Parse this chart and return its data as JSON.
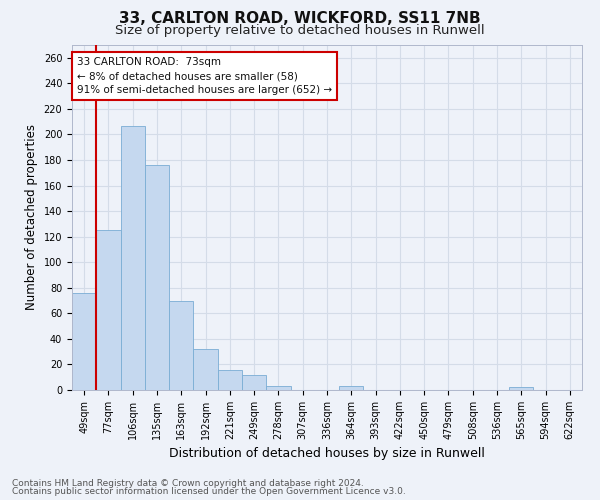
{
  "title1": "33, CARLTON ROAD, WICKFORD, SS11 7NB",
  "title2": "Size of property relative to detached houses in Runwell",
  "xlabel": "Distribution of detached houses by size in Runwell",
  "ylabel": "Number of detached properties",
  "categories": [
    "49sqm",
    "77sqm",
    "106sqm",
    "135sqm",
    "163sqm",
    "192sqm",
    "221sqm",
    "249sqm",
    "278sqm",
    "307sqm",
    "336sqm",
    "364sqm",
    "393sqm",
    "422sqm",
    "450sqm",
    "479sqm",
    "508sqm",
    "536sqm",
    "565sqm",
    "594sqm",
    "622sqm"
  ],
  "values": [
    76,
    125,
    207,
    176,
    70,
    32,
    16,
    12,
    3,
    0,
    0,
    3,
    0,
    0,
    0,
    0,
    0,
    0,
    2,
    0,
    0
  ],
  "bar_color": "#c5d8ef",
  "bar_edge_color": "#7aadd4",
  "grid_color": "#d4dce8",
  "background_color": "#eef2f9",
  "vline_color": "#cc0000",
  "annotation_title": "33 CARLTON ROAD:  73sqm",
  "annotation_line1": "← 8% of detached houses are smaller (58)",
  "annotation_line2": "91% of semi-detached houses are larger (652) →",
  "annotation_box_color": "#ffffff",
  "annotation_border_color": "#cc0000",
  "ylim": [
    0,
    270
  ],
  "yticks": [
    0,
    20,
    40,
    60,
    80,
    100,
    120,
    140,
    160,
    180,
    200,
    220,
    240,
    260
  ],
  "footer1": "Contains HM Land Registry data © Crown copyright and database right 2024.",
  "footer2": "Contains public sector information licensed under the Open Government Licence v3.0.",
  "title1_fontsize": 11,
  "title2_fontsize": 9.5,
  "xlabel_fontsize": 9,
  "ylabel_fontsize": 8.5,
  "tick_fontsize": 7,
  "footer_fontsize": 6.5,
  "annotation_fontsize": 7.5
}
